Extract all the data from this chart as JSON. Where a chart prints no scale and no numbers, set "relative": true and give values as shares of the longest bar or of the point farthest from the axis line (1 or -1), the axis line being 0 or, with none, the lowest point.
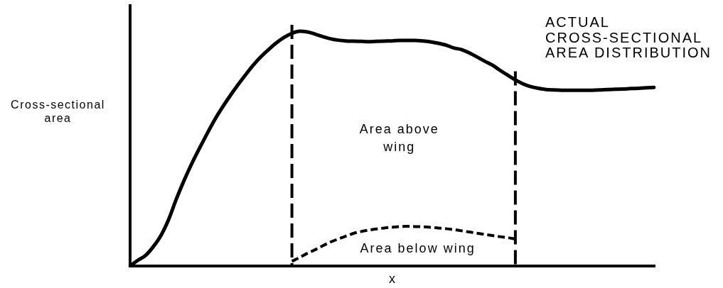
{
  "chart_data": {
    "type": "line",
    "relative": true,
    "xlabel": "x",
    "ylabel": "Cross-sectional area",
    "categories": [
      null,
      null,
      null,
      null,
      null,
      null,
      null,
      null,
      null,
      null,
      null,
      null,
      null,
      null,
      null,
      null,
      null,
      null,
      null,
      null,
      null,
      null,
      null,
      null,
      null,
      null,
      null,
      null,
      null,
      null,
      null,
      null,
      null,
      null,
      null,
      null,
      null,
      null,
      null,
      null,
      null,
      null,
      null,
      null,
      null,
      null,
      null,
      null,
      null,
      null,
      null,
      null,
      null,
      null,
      null,
      null,
      null,
      null,
      null,
      null,
      null,
      null,
      null,
      null,
      null,
      null,
      null,
      null,
      null
    ],
    "series": [
      {
        "name": "ACTUAL CROSS-SECTIONAL AREA DISTRIBUTION",
        "color": "#000000",
        "values": [
          0,
          0.024,
          0.045,
          0.082,
          0.13,
          0.198,
          0.285,
          0.364,
          0.436,
          0.501,
          0.564,
          0.624,
          0.677,
          0.726,
          0.772,
          0.815,
          0.856,
          0.892,
          0.923,
          0.951,
          0.974,
          0.991,
          1,
          0.997,
          0.988,
          0.977,
          0.968,
          0.962,
          0.959,
          0.958,
          0.957,
          0.956,
          0.957,
          0.958,
          0.959,
          0.961,
          0.961,
          0.961,
          0.959,
          0.955,
          0.949,
          0.941,
          0.929,
          0.922,
          0.908,
          0.891,
          0.873,
          0.856,
          0.834,
          0.813,
          0.793,
          0.776,
          0.764,
          0.757,
          0.752,
          0.75,
          0.749,
          0.749,
          0.749,
          0.749,
          0.749,
          0.75,
          0.752,
          0.753,
          0.754,
          0.756,
          0.757,
          0.759,
          0.761
        ]
      },
      {
        "color": "#000000",
        "line_style": "dashed",
        "values": [
          null,
          null,
          null,
          null,
          null,
          null,
          null,
          null,
          null,
          null,
          null,
          null,
          null,
          null,
          null,
          null,
          null,
          null,
          null,
          null,
          null,
          0.02,
          0.036,
          0.054,
          0.069,
          0.086,
          0.102,
          0.115,
          0.127,
          0.139,
          0.147,
          0.153,
          0.158,
          0.162,
          0.165,
          0.168,
          0.169,
          0.168,
          0.167,
          0.165,
          0.162,
          0.159,
          0.155,
          0.15,
          0.145,
          0.14,
          0.135,
          0.13,
          0.125,
          0.121,
          0.115,
          null,
          null,
          null,
          null,
          null,
          null,
          null,
          null,
          null,
          null,
          null,
          null,
          null,
          null,
          null,
          null,
          null,
          null
        ]
      }
    ],
    "annotations": [
      "Area above wing",
      "Area below wing"
    ]
  }
}
